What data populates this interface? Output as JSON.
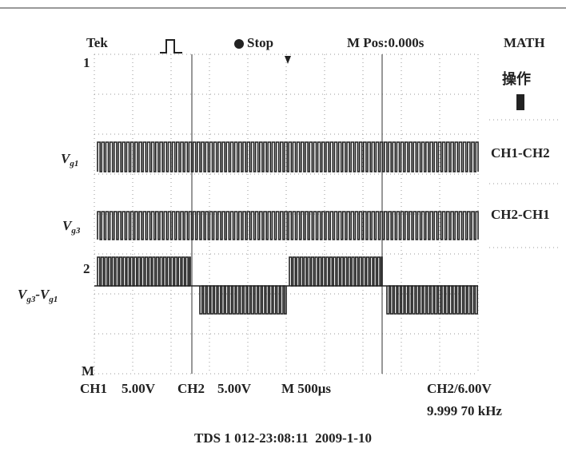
{
  "header": {
    "brand": "Tek",
    "status": "Stop",
    "position": "M Pos:0.000s"
  },
  "menu": {
    "title": "MATH",
    "label": "操作",
    "options": [
      "CH1-CH2",
      "CH2-CH1"
    ]
  },
  "markers": {
    "ch1": "1",
    "ch2": "2",
    "math": "M"
  },
  "traces": [
    {
      "main": "V",
      "sub": "g1"
    },
    {
      "main": "V",
      "sub": "g3"
    },
    {
      "main": "V",
      "sub": "g3",
      "minus": "-V",
      "sub2": "g1"
    }
  ],
  "footer": {
    "ch1": "CH1",
    "ch1_scale": "5.00V",
    "ch2": "CH2",
    "ch2_scale": "5.00V",
    "time": "M 500μs",
    "trigger": "CH2/6.00V",
    "frequency": "9.999 70 kHz"
  },
  "caption": "TDS 1 012-23:08:11  2009-1-10"
}
